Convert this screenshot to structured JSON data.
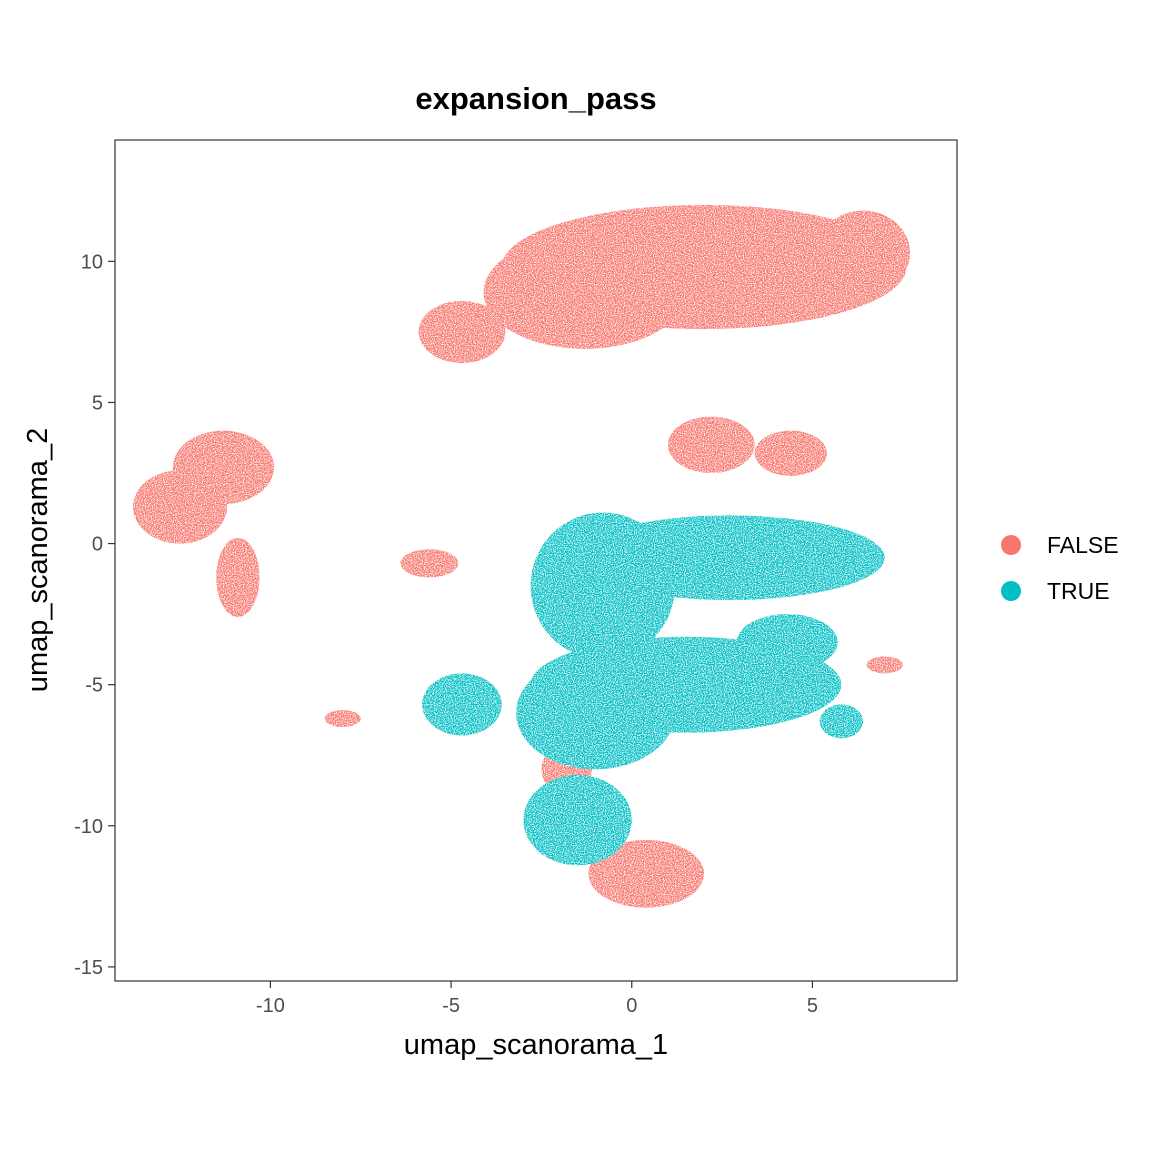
{
  "chart_data": {
    "type": "scatter",
    "title": "expansion_pass",
    "xlabel": "umap_scanorama_1",
    "ylabel": "umap_scanorama_2",
    "xlim": [
      -14.3,
      9.0
    ],
    "ylim": [
      -15.5,
      14.3
    ],
    "x_ticks": [
      -10,
      -5,
      0,
      5
    ],
    "x_tick_labels": [
      "-10",
      "-5",
      "0",
      "5"
    ],
    "y_ticks": [
      10,
      5,
      0,
      -5,
      -10,
      -15
    ],
    "y_tick_labels": [
      "10",
      "5",
      "0",
      "-5",
      "-10",
      "-15"
    ],
    "grid": false,
    "legend_position": "right",
    "series": [
      {
        "name": "FALSE",
        "color": "#F8766D",
        "clusters": [
          {
            "cx": 2.0,
            "cy": 9.8,
            "rx": 5.6,
            "ry": 2.2
          },
          {
            "cx": -1.3,
            "cy": 8.9,
            "rx": 2.8,
            "ry": 2.0
          },
          {
            "cx": 6.4,
            "cy": 10.3,
            "rx": 1.3,
            "ry": 1.5
          },
          {
            "cx": -4.7,
            "cy": 7.5,
            "rx": 1.2,
            "ry": 1.1
          },
          {
            "cx": -12.5,
            "cy": 1.3,
            "rx": 1.3,
            "ry": 1.3
          },
          {
            "cx": -11.3,
            "cy": 2.7,
            "rx": 1.4,
            "ry": 1.3
          },
          {
            "cx": -10.9,
            "cy": -1.2,
            "rx": 0.6,
            "ry": 1.4
          },
          {
            "cx": 2.2,
            "cy": 3.5,
            "rx": 1.2,
            "ry": 1.0
          },
          {
            "cx": 4.4,
            "cy": 3.2,
            "rx": 1.0,
            "ry": 0.8
          },
          {
            "cx": -5.6,
            "cy": -0.7,
            "rx": 0.8,
            "ry": 0.5
          },
          {
            "cx": -8.0,
            "cy": -6.2,
            "rx": 0.5,
            "ry": 0.3
          },
          {
            "cx": 0.4,
            "cy": -11.7,
            "rx": 1.6,
            "ry": 1.2
          },
          {
            "cx": -1.8,
            "cy": -8.0,
            "rx": 0.7,
            "ry": 0.9
          },
          {
            "cx": 7.0,
            "cy": -4.3,
            "rx": 0.5,
            "ry": 0.3
          }
        ]
      },
      {
        "name": "TRUE",
        "color": "#00BFC4",
        "clusters": [
          {
            "cx": 2.7,
            "cy": -0.5,
            "rx": 4.3,
            "ry": 1.5
          },
          {
            "cx": -0.8,
            "cy": -1.5,
            "rx": 2.0,
            "ry": 2.6
          },
          {
            "cx": 1.5,
            "cy": -5.0,
            "rx": 4.3,
            "ry": 1.7
          },
          {
            "cx": -1.0,
            "cy": -6.0,
            "rx": 2.2,
            "ry": 2.0
          },
          {
            "cx": -4.7,
            "cy": -5.7,
            "rx": 1.1,
            "ry": 1.1
          },
          {
            "cx": -1.5,
            "cy": -9.8,
            "rx": 1.5,
            "ry": 1.6
          },
          {
            "cx": 4.3,
            "cy": -3.5,
            "rx": 1.4,
            "ry": 1.0
          },
          {
            "cx": 5.8,
            "cy": -6.3,
            "rx": 0.6,
            "ry": 0.6
          }
        ]
      }
    ]
  }
}
